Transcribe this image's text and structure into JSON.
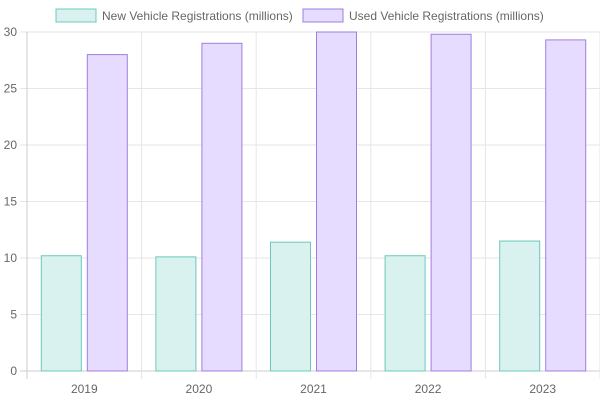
{
  "chart_data": {
    "type": "bar",
    "categories": [
      "2019",
      "2020",
      "2021",
      "2022",
      "2023"
    ],
    "series": [
      {
        "name": "New Vehicle Registrations (millions)",
        "values": [
          10.2,
          10.1,
          11.4,
          10.2,
          11.5
        ],
        "fill": "#d9f2ef",
        "stroke": "#6cc8bd"
      },
      {
        "name": "Used Vehicle Registrations (millions)",
        "values": [
          28.0,
          29.0,
          30.0,
          29.8,
          29.3
        ],
        "fill": "#e6dcff",
        "stroke": "#a07ee0"
      }
    ],
    "ylim": [
      0,
      30
    ],
    "yticks": [
      0,
      5,
      10,
      15,
      20,
      25,
      30
    ],
    "grid": true,
    "legend_position": "top",
    "title": "",
    "xlabel": "",
    "ylabel": ""
  }
}
